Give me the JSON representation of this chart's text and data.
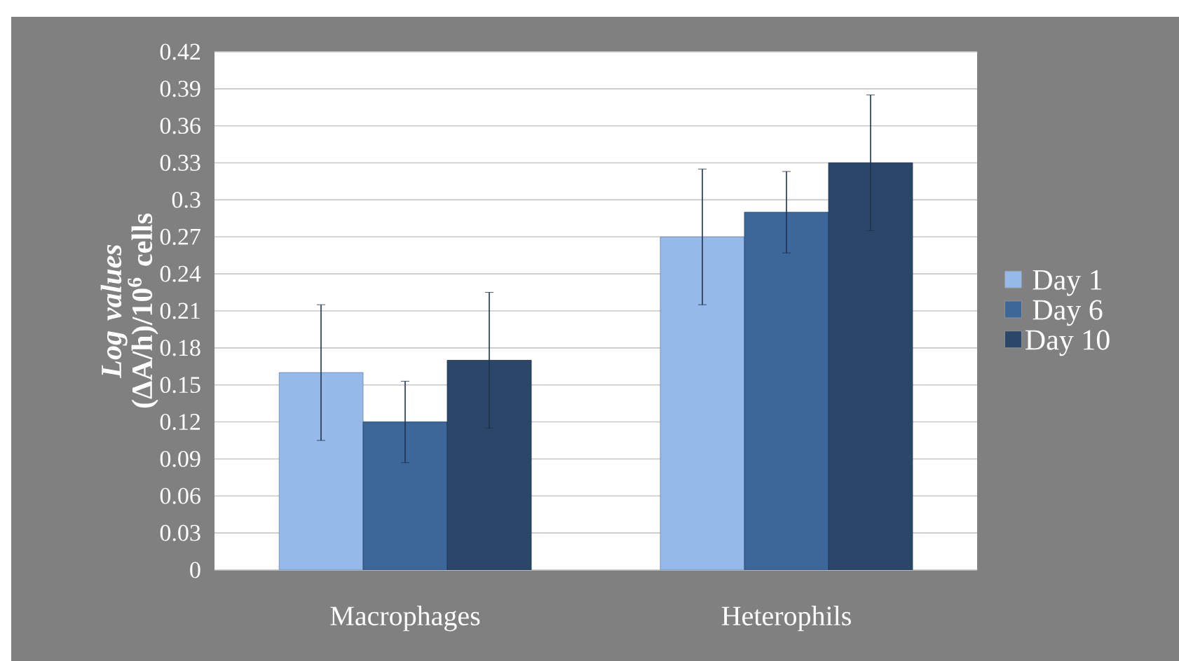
{
  "chart_data": {
    "type": "bar",
    "ylabel": "*Log values* (ΔA/h)/10$^{6}$ cells",
    "categories": [
      "Macrophages",
      "Heterophils"
    ],
    "series": [
      {
        "name": "Day 1",
        "color": "#95b9e8",
        "values": [
          0.16,
          0.27
        ],
        "errors": [
          0.055,
          0.055
        ]
      },
      {
        "name": "Day 6",
        "color": "#3d6699",
        "values": [
          0.12,
          0.29
        ],
        "errors": [
          0.033,
          0.033
        ]
      },
      {
        "name": "Day 10",
        "color": "#2a4769",
        "values": [
          0.17,
          0.33
        ],
        "errors": [
          0.055,
          0.055
        ]
      }
    ],
    "ylim": [
      0,
      0.42
    ],
    "yticks": [
      0,
      0.03,
      0.06,
      0.09,
      0.12,
      0.15,
      0.18,
      0.21,
      0.24,
      0.27,
      0.3,
      0.33,
      0.36,
      0.39,
      0.42
    ],
    "grid": "y",
    "legend": "right"
  }
}
